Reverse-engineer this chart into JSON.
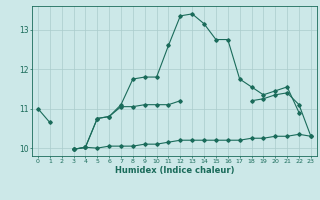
{
  "xlabel": "Humidex (Indice chaleur)",
  "x": [
    0,
    1,
    2,
    3,
    4,
    5,
    6,
    7,
    8,
    9,
    10,
    11,
    12,
    13,
    14,
    15,
    16,
    17,
    18,
    19,
    20,
    21,
    22,
    23
  ],
  "line1": [
    11.0,
    10.65,
    null,
    9.97,
    10.02,
    10.75,
    10.8,
    11.1,
    11.75,
    11.8,
    11.8,
    12.6,
    13.35,
    13.4,
    13.15,
    12.75,
    12.75,
    11.75,
    11.55,
    11.35,
    11.45,
    11.55,
    10.9,
    null
  ],
  "line2": [
    null,
    null,
    null,
    9.97,
    10.02,
    10.75,
    10.8,
    11.05,
    11.05,
    11.1,
    11.1,
    11.1,
    11.2,
    null,
    null,
    null,
    null,
    null,
    11.2,
    11.25,
    11.35,
    11.4,
    11.1,
    10.3
  ],
  "line3": [
    null,
    null,
    null,
    9.97,
    10.02,
    10.0,
    10.05,
    10.05,
    10.05,
    10.1,
    10.1,
    10.15,
    10.2,
    10.2,
    10.2,
    10.2,
    10.2,
    10.2,
    10.25,
    10.25,
    10.3,
    10.3,
    10.35,
    10.3
  ],
  "bg_color": "#cce8e8",
  "grid_color": "#aacccc",
  "line_color": "#1a6b5a",
  "ylim": [
    9.8,
    13.6
  ],
  "xlim": [
    -0.5,
    23.5
  ]
}
